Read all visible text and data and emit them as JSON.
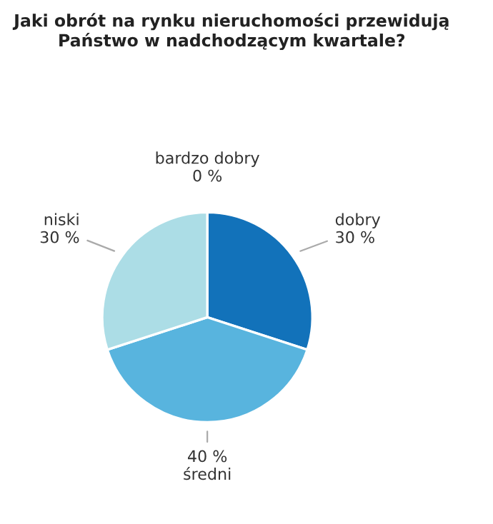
{
  "chart_data": {
    "type": "pie",
    "title": "Jaki obrót na rynku nieruchomości przewidują\nPaństwo w nadchodzącym kwartale?",
    "categories": [
      "bardzo dobry",
      "dobry",
      "średni",
      "niski"
    ],
    "values": [
      0,
      30,
      40,
      30
    ],
    "colors": [
      "#0d5fa8",
      "#1272ba",
      "#58b4de",
      "#acdde6"
    ],
    "value_labels": [
      "0 %",
      "30 %",
      "40 %",
      "30 %"
    ]
  }
}
